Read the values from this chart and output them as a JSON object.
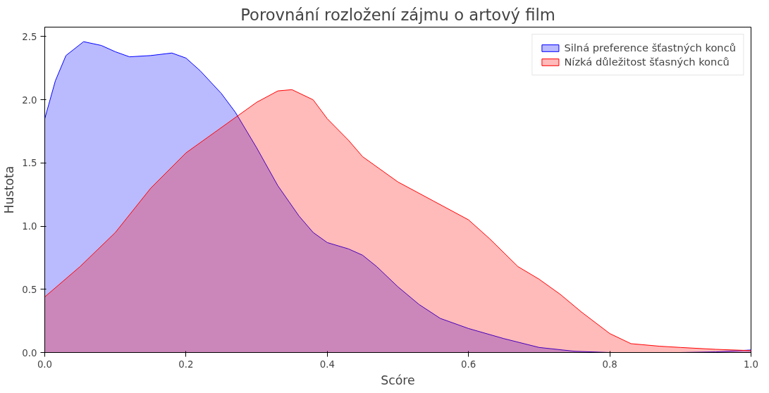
{
  "chart_data": {
    "type": "area",
    "title": "Porovnání rozložení zájmu o artový film",
    "xlabel": "Scóre",
    "ylabel": "Hustota",
    "xlim": [
      0,
      1
    ],
    "ylim": [
      0,
      2.575
    ],
    "xticks": [
      {
        "value": 0,
        "label": "0.0"
      },
      0.2,
      0.4,
      0.6,
      0.8,
      {
        "value": 1,
        "label": "1.0"
      }
    ],
    "yticks": [
      {
        "value": 0,
        "label": "0.0"
      },
      0.5,
      {
        "value": 1,
        "label": "1.0"
      },
      1.5,
      {
        "value": 2,
        "label": "2.0"
      },
      2.5
    ],
    "grid": false,
    "legend": "top right",
    "series": [
      {
        "name": "Silná preference šťastných konců",
        "color": "#0000ff",
        "x": [
          0,
          0.015,
          0.03,
          0.055,
          0.08,
          0.1,
          0.12,
          0.15,
          0.18,
          0.2,
          0.22,
          0.25,
          0.27,
          0.3,
          0.33,
          0.36,
          0.38,
          0.4,
          0.43,
          0.45,
          0.47,
          0.5,
          0.53,
          0.56,
          0.6,
          0.65,
          0.7,
          0.75,
          0.8,
          0.9,
          0.95,
          1.0
        ],
        "values": [
          1.85,
          2.15,
          2.35,
          2.46,
          2.43,
          2.38,
          2.34,
          2.35,
          2.37,
          2.33,
          2.23,
          2.05,
          1.9,
          1.62,
          1.32,
          1.08,
          0.95,
          0.87,
          0.82,
          0.77,
          0.68,
          0.52,
          0.38,
          0.27,
          0.19,
          0.11,
          0.04,
          0.01,
          0.0,
          0.0,
          0.005,
          0.02
        ]
      },
      {
        "name": "Nízká důležitost šťasných konců",
        "color": "#ff0000",
        "x": [
          0,
          0.05,
          0.1,
          0.15,
          0.2,
          0.25,
          0.28,
          0.3,
          0.33,
          0.35,
          0.38,
          0.4,
          0.43,
          0.45,
          0.5,
          0.55,
          0.6,
          0.63,
          0.67,
          0.7,
          0.73,
          0.76,
          0.8,
          0.83,
          0.87,
          0.9,
          0.95,
          1.0
        ],
        "values": [
          0.44,
          0.68,
          0.95,
          1.3,
          1.58,
          1.78,
          1.9,
          1.98,
          2.07,
          2.08,
          2.0,
          1.85,
          1.68,
          1.55,
          1.35,
          1.2,
          1.05,
          0.9,
          0.68,
          0.58,
          0.46,
          0.32,
          0.15,
          0.07,
          0.05,
          0.04,
          0.025,
          0.015
        ]
      }
    ]
  }
}
